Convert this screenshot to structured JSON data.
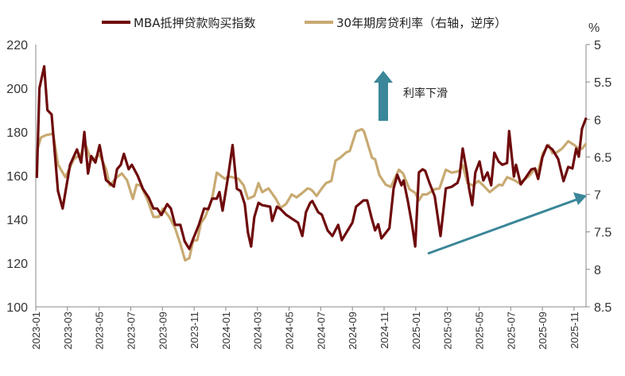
{
  "chart_data": {
    "type": "line",
    "title": "",
    "legend_position": "top",
    "grid": false,
    "x_axis": {
      "tick_labels": [
        "2023-01",
        "2023-03",
        "2023-05",
        "2023-07",
        "2023-09",
        "2023-11",
        "2024-01",
        "2024-03",
        "2024-05",
        "2024-07",
        "2024-09",
        "2024-11",
        "2025-01",
        "2025-03",
        "2025-05",
        "2025-07",
        "2025-09",
        "2025-11"
      ]
    },
    "y_axis_left": {
      "range": [
        100,
        220
      ],
      "ticks": [
        "100",
        "120",
        "140",
        "160",
        "180",
        "200",
        "220"
      ]
    },
    "y_axis_right": {
      "unit": "%",
      "range": [
        5,
        8.5
      ],
      "reversed": true,
      "ticks": [
        "5",
        "5.5",
        "6",
        "6.5",
        "7",
        "7.5",
        "8",
        "8.5"
      ]
    },
    "series": [
      {
        "name": "MBA抵押贷款购买指数",
        "axis": "left",
        "color": "#6e0a0c",
        "points": [
          [
            "2023-01-03",
            159
          ],
          [
            "2023-01-08",
            200
          ],
          [
            "2023-01-17",
            210
          ],
          [
            "2023-01-23",
            190
          ],
          [
            "2023-02-01",
            188
          ],
          [
            "2023-02-13",
            153
          ],
          [
            "2023-02-22",
            145
          ],
          [
            "2023-03-06",
            165
          ],
          [
            "2023-03-19",
            172
          ],
          [
            "2023-03-27",
            166
          ],
          [
            "2023-04-03",
            180
          ],
          [
            "2023-04-10",
            161
          ],
          [
            "2023-04-16",
            169
          ],
          [
            "2023-04-24",
            166
          ],
          [
            "2023-05-02",
            174
          ],
          [
            "2023-05-14",
            158
          ],
          [
            "2023-05-29",
            155
          ],
          [
            "2023-06-05",
            163
          ],
          [
            "2023-06-12",
            165
          ],
          [
            "2023-06-18",
            170
          ],
          [
            "2023-06-27",
            163
          ],
          [
            "2023-07-03",
            165
          ],
          [
            "2023-07-14",
            160
          ],
          [
            "2023-07-24",
            154
          ],
          [
            "2023-08-05",
            150
          ],
          [
            "2023-08-14",
            145
          ],
          [
            "2023-08-21",
            145
          ],
          [
            "2023-08-29",
            142
          ],
          [
            "2023-09-10",
            147
          ],
          [
            "2023-09-17",
            145
          ],
          [
            "2023-09-25",
            137.5
          ],
          [
            "2023-10-05",
            137.5
          ],
          [
            "2023-10-13",
            130
          ],
          [
            "2023-10-22",
            126.5
          ],
          [
            "2023-10-29",
            131
          ],
          [
            "2023-11-10",
            137.5
          ],
          [
            "2023-11-20",
            145
          ],
          [
            "2023-11-28",
            144.7
          ],
          [
            "2023-12-05",
            149.5
          ],
          [
            "2023-12-14",
            149.5
          ],
          [
            "2023-12-19",
            152.5
          ],
          [
            "2023-12-25",
            144
          ],
          [
            "2024-01-05",
            159
          ],
          [
            "2024-01-14",
            174
          ],
          [
            "2024-01-22",
            154
          ],
          [
            "2024-01-29",
            153
          ],
          [
            "2024-02-07",
            147
          ],
          [
            "2024-02-13",
            134
          ],
          [
            "2024-02-19",
            127.6
          ],
          [
            "2024-02-25",
            141
          ],
          [
            "2024-03-03",
            147.6
          ],
          [
            "2024-03-10",
            146.5
          ],
          [
            "2024-03-25",
            145.8
          ],
          [
            "2024-03-29",
            139.3
          ],
          [
            "2024-04-08",
            145.8
          ],
          [
            "2024-04-15",
            144.7
          ],
          [
            "2024-04-25",
            142.2
          ],
          [
            "2024-05-06",
            140.4
          ],
          [
            "2024-05-18",
            138.5
          ],
          [
            "2024-05-26",
            132.4
          ],
          [
            "2024-06-03",
            143.3
          ],
          [
            "2024-06-11",
            147.6
          ],
          [
            "2024-06-15",
            148.4
          ],
          [
            "2024-06-26",
            143.3
          ],
          [
            "2024-07-03",
            142.2
          ],
          [
            "2024-07-14",
            135
          ],
          [
            "2024-07-23",
            132.4
          ],
          [
            "2024-08-04",
            137.5
          ],
          [
            "2024-08-11",
            130.5
          ],
          [
            "2024-08-31",
            138.5
          ],
          [
            "2024-09-08",
            145.8
          ],
          [
            "2024-09-22",
            148.7
          ],
          [
            "2024-09-29",
            148.7
          ],
          [
            "2024-10-07",
            141
          ],
          [
            "2024-10-14",
            135
          ],
          [
            "2024-10-20",
            137.8
          ],
          [
            "2024-10-26",
            131.3
          ],
          [
            "2024-11-11",
            136
          ],
          [
            "2024-11-19",
            154.2
          ],
          [
            "2024-11-26",
            160.4
          ],
          [
            "2024-12-04",
            155.6
          ],
          [
            "2024-12-08",
            157.8
          ],
          [
            "2024-12-16",
            148.4
          ],
          [
            "2024-12-24",
            137.5
          ],
          [
            "2024-12-30",
            127.6
          ],
          [
            "2025-01-07",
            161.5
          ],
          [
            "2025-01-14",
            162.9
          ],
          [
            "2025-01-19",
            162.2
          ],
          [
            "2025-01-27",
            156.7
          ],
          [
            "2025-02-07",
            150.6
          ],
          [
            "2025-02-18",
            132.4
          ],
          [
            "2025-02-28",
            154.2
          ],
          [
            "2025-03-09",
            154.9
          ],
          [
            "2025-03-20",
            156.7
          ],
          [
            "2025-03-24",
            159.6
          ],
          [
            "2025-03-30",
            172.4
          ],
          [
            "2025-04-08",
            161.5
          ],
          [
            "2025-04-12",
            154.2
          ],
          [
            "2025-04-18",
            146.5
          ],
          [
            "2025-04-24",
            161.5
          ],
          [
            "2025-05-02",
            166.5
          ],
          [
            "2025-05-09",
            157.8
          ],
          [
            "2025-05-17",
            161.5
          ],
          [
            "2025-05-24",
            155.6
          ],
          [
            "2025-05-30",
            170.5
          ],
          [
            "2025-06-08",
            166.5
          ],
          [
            "2025-06-15",
            165
          ],
          [
            "2025-06-24",
            165.8
          ],
          [
            "2025-06-28",
            180.4
          ],
          [
            "2025-07-07",
            159.6
          ],
          [
            "2025-07-11",
            165
          ],
          [
            "2025-07-20",
            156
          ],
          [
            "2025-07-30",
            159.3
          ],
          [
            "2025-08-10",
            162.9
          ],
          [
            "2025-08-17",
            163.3
          ],
          [
            "2025-08-23",
            158.5
          ],
          [
            "2025-08-31",
            168.4
          ],
          [
            "2025-09-10",
            173.8
          ],
          [
            "2025-09-20",
            172
          ],
          [
            "2025-10-01",
            167.6
          ],
          [
            "2025-10-11",
            157.5
          ],
          [
            "2025-10-20",
            164
          ],
          [
            "2025-10-28",
            163.3
          ],
          [
            "2025-11-05",
            172.4
          ],
          [
            "2025-11-10",
            168.7
          ],
          [
            "2025-11-16",
            181.5
          ],
          [
            "2025-11-24",
            186.5
          ]
        ]
      },
      {
        "name": "30年期房贷利率（右轴，逆序）",
        "axis": "right",
        "color": "#c8aa72",
        "points": [
          [
            "2023-01-03",
            6.42
          ],
          [
            "2023-01-11",
            6.24
          ],
          [
            "2023-01-20",
            6.21
          ],
          [
            "2023-02-04",
            6.19
          ],
          [
            "2023-02-13",
            6.6
          ],
          [
            "2023-02-27",
            6.77
          ],
          [
            "2023-03-13",
            6.53
          ],
          [
            "2023-03-28",
            6.45
          ],
          [
            "2023-04-03",
            6.29
          ],
          [
            "2023-04-16",
            6.55
          ],
          [
            "2023-05-02",
            6.47
          ],
          [
            "2023-05-14",
            6.66
          ],
          [
            "2023-05-21",
            6.88
          ],
          [
            "2023-06-05",
            6.77
          ],
          [
            "2023-06-14",
            6.72
          ],
          [
            "2023-06-24",
            6.81
          ],
          [
            "2023-07-05",
            7.06
          ],
          [
            "2023-07-12",
            6.87
          ],
          [
            "2023-07-20",
            6.88
          ],
          [
            "2023-08-02",
            7.06
          ],
          [
            "2023-08-14",
            7.3
          ],
          [
            "2023-08-24",
            7.3
          ],
          [
            "2023-09-02",
            7.19
          ],
          [
            "2023-09-14",
            7.3
          ],
          [
            "2023-09-25",
            7.45
          ],
          [
            "2023-10-05",
            7.66
          ],
          [
            "2023-10-14",
            7.88
          ],
          [
            "2023-10-22",
            7.85
          ],
          [
            "2023-10-29",
            7.62
          ],
          [
            "2023-11-07",
            7.61
          ],
          [
            "2023-11-14",
            7.38
          ],
          [
            "2023-11-22",
            7.3
          ],
          [
            "2023-12-05",
            7.06
          ],
          [
            "2023-12-14",
            6.71
          ],
          [
            "2023-12-29",
            6.79
          ],
          [
            "2024-01-07",
            6.76
          ],
          [
            "2024-01-25",
            6.79
          ],
          [
            "2024-02-05",
            6.88
          ],
          [
            "2024-02-13",
            7.06
          ],
          [
            "2024-02-25",
            7.02
          ],
          [
            "2024-03-03",
            6.85
          ],
          [
            "2024-03-10",
            6.97
          ],
          [
            "2024-03-22",
            6.92
          ],
          [
            "2024-04-06",
            7.06
          ],
          [
            "2024-04-15",
            7.18
          ],
          [
            "2024-04-25",
            7.13
          ],
          [
            "2024-05-06",
            7.0
          ],
          [
            "2024-05-15",
            7.04
          ],
          [
            "2024-05-26",
            6.98
          ],
          [
            "2024-06-06",
            6.92
          ],
          [
            "2024-06-11",
            6.93
          ],
          [
            "2024-06-15",
            6.95
          ],
          [
            "2024-06-23",
            7.02
          ],
          [
            "2024-07-03",
            6.92
          ],
          [
            "2024-07-11",
            6.85
          ],
          [
            "2024-07-21",
            6.82
          ],
          [
            "2024-07-29",
            6.55
          ],
          [
            "2024-08-08",
            6.51
          ],
          [
            "2024-08-19",
            6.44
          ],
          [
            "2024-08-26",
            6.42
          ],
          [
            "2024-09-08",
            6.16
          ],
          [
            "2024-09-19",
            6.13
          ],
          [
            "2024-09-23",
            6.16
          ],
          [
            "2024-10-08",
            6.51
          ],
          [
            "2024-10-14",
            6.53
          ],
          [
            "2024-10-22",
            6.74
          ],
          [
            "2024-11-04",
            6.87
          ],
          [
            "2024-11-14",
            6.9
          ],
          [
            "2024-11-29",
            6.67
          ],
          [
            "2024-12-07",
            6.72
          ],
          [
            "2024-12-19",
            6.93
          ],
          [
            "2024-12-30",
            6.98
          ],
          [
            "2025-01-07",
            7.08
          ],
          [
            "2025-01-14",
            7.0
          ],
          [
            "2025-01-22",
            7.0
          ],
          [
            "2025-02-07",
            6.93
          ],
          [
            "2025-02-16",
            6.92
          ],
          [
            "2025-02-28",
            6.67
          ],
          [
            "2025-03-09",
            6.71
          ],
          [
            "2025-03-23",
            6.69
          ],
          [
            "2025-03-30",
            6.61
          ],
          [
            "2025-04-09",
            6.85
          ],
          [
            "2025-04-19",
            6.88
          ],
          [
            "2025-04-30",
            6.82
          ],
          [
            "2025-05-09",
            6.88
          ],
          [
            "2025-05-21",
            6.97
          ],
          [
            "2025-05-30",
            6.92
          ],
          [
            "2025-06-09",
            6.87
          ],
          [
            "2025-06-15",
            6.88
          ],
          [
            "2025-06-24",
            6.77
          ],
          [
            "2025-07-08",
            6.81
          ],
          [
            "2025-07-17",
            6.85
          ],
          [
            "2025-08-05",
            6.76
          ],
          [
            "2025-08-16",
            6.67
          ],
          [
            "2025-08-23",
            6.69
          ],
          [
            "2025-09-02",
            6.45
          ],
          [
            "2025-09-13",
            6.34
          ],
          [
            "2025-09-20",
            6.45
          ],
          [
            "2025-09-28",
            6.44
          ],
          [
            "2025-10-08",
            6.39
          ],
          [
            "2025-10-20",
            6.29
          ],
          [
            "2025-11-01",
            6.34
          ],
          [
            "2025-11-10",
            6.39
          ],
          [
            "2025-11-16",
            6.39
          ],
          [
            "2025-11-24",
            6.32
          ]
        ]
      }
    ],
    "annotations": {
      "rate_decline_text": "利率下滑",
      "arrow_color": "#3b8799"
    }
  }
}
